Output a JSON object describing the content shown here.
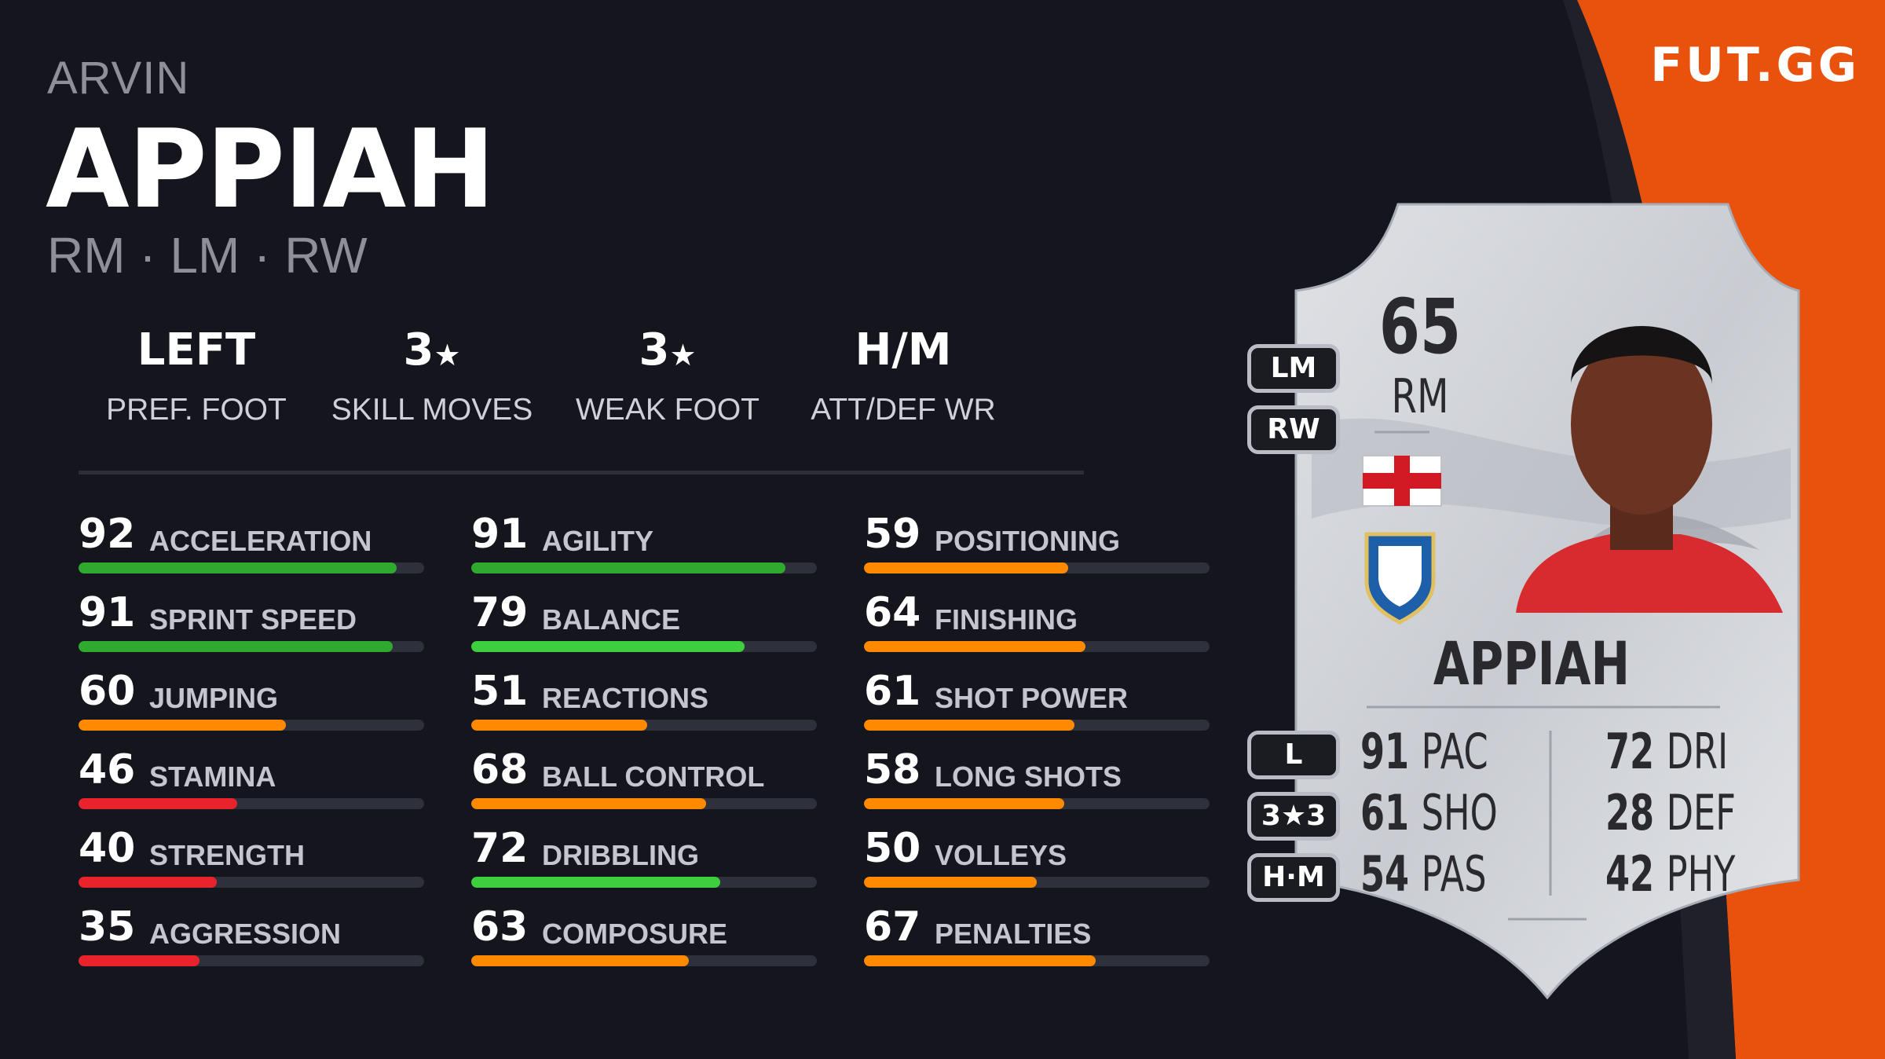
{
  "brand": "FUT.GG",
  "player": {
    "first_name": "ARVIN",
    "last_name": "APPIAH",
    "positions": "RM · LM · RW"
  },
  "info": [
    {
      "value": "LEFT",
      "label": "PREF. FOOT"
    },
    {
      "value": "3",
      "star": "★",
      "label": "SKILL MOVES"
    },
    {
      "value": "3",
      "star": "★",
      "label": "WEAK FOOT"
    },
    {
      "value": "H/M",
      "label": "ATT/DEF WR"
    }
  ],
  "colors": {
    "green": "#2faa2f",
    "light_green": "#3ecf3e",
    "orange": "#ff8a00",
    "red": "#e8232b",
    "panel_orange": "#e8520c"
  },
  "stats": [
    [
      {
        "value": 92,
        "name": "ACCELERATION",
        "color": "#2faa2f"
      },
      {
        "value": 91,
        "name": "SPRINT SPEED",
        "color": "#2faa2f"
      },
      {
        "value": 60,
        "name": "JUMPING",
        "color": "#ff8a00"
      },
      {
        "value": 46,
        "name": "STAMINA",
        "color": "#e8232b"
      },
      {
        "value": 40,
        "name": "STRENGTH",
        "color": "#e8232b"
      },
      {
        "value": 35,
        "name": "AGGRESSION",
        "color": "#e8232b"
      }
    ],
    [
      {
        "value": 91,
        "name": "AGILITY",
        "color": "#2faa2f"
      },
      {
        "value": 79,
        "name": "BALANCE",
        "color": "#3ecf3e"
      },
      {
        "value": 51,
        "name": "REACTIONS",
        "color": "#ff8a00"
      },
      {
        "value": 68,
        "name": "BALL CONTROL",
        "color": "#ff8a00"
      },
      {
        "value": 72,
        "name": "DRIBBLING",
        "color": "#3ecf3e"
      },
      {
        "value": 63,
        "name": "COMPOSURE",
        "color": "#ff8a00"
      }
    ],
    [
      {
        "value": 59,
        "name": "POSITIONING",
        "color": "#ff8a00"
      },
      {
        "value": 64,
        "name": "FINISHING",
        "color": "#ff8a00"
      },
      {
        "value": 61,
        "name": "SHOT POWER",
        "color": "#ff8a00"
      },
      {
        "value": 58,
        "name": "LONG SHOTS",
        "color": "#ff8a00"
      },
      {
        "value": 50,
        "name": "VOLLEYS",
        "color": "#ff8a00"
      },
      {
        "value": 67,
        "name": "PENALTIES",
        "color": "#ff8a00"
      }
    ]
  ],
  "card": {
    "rating": "65",
    "position": "RM",
    "name": "APPIAH",
    "alt_positions": [
      "LM",
      "RW"
    ],
    "foot": "L",
    "skill_weak": "3★3",
    "work_rates": "H·M",
    "face_stats": [
      {
        "value": "91",
        "label": "PAC"
      },
      {
        "value": "61",
        "label": "SHO"
      },
      {
        "value": "54",
        "label": "PAS"
      },
      {
        "value": "72",
        "label": "DRI"
      },
      {
        "value": "28",
        "label": "DEF"
      },
      {
        "value": "42",
        "label": "PHY"
      }
    ]
  }
}
